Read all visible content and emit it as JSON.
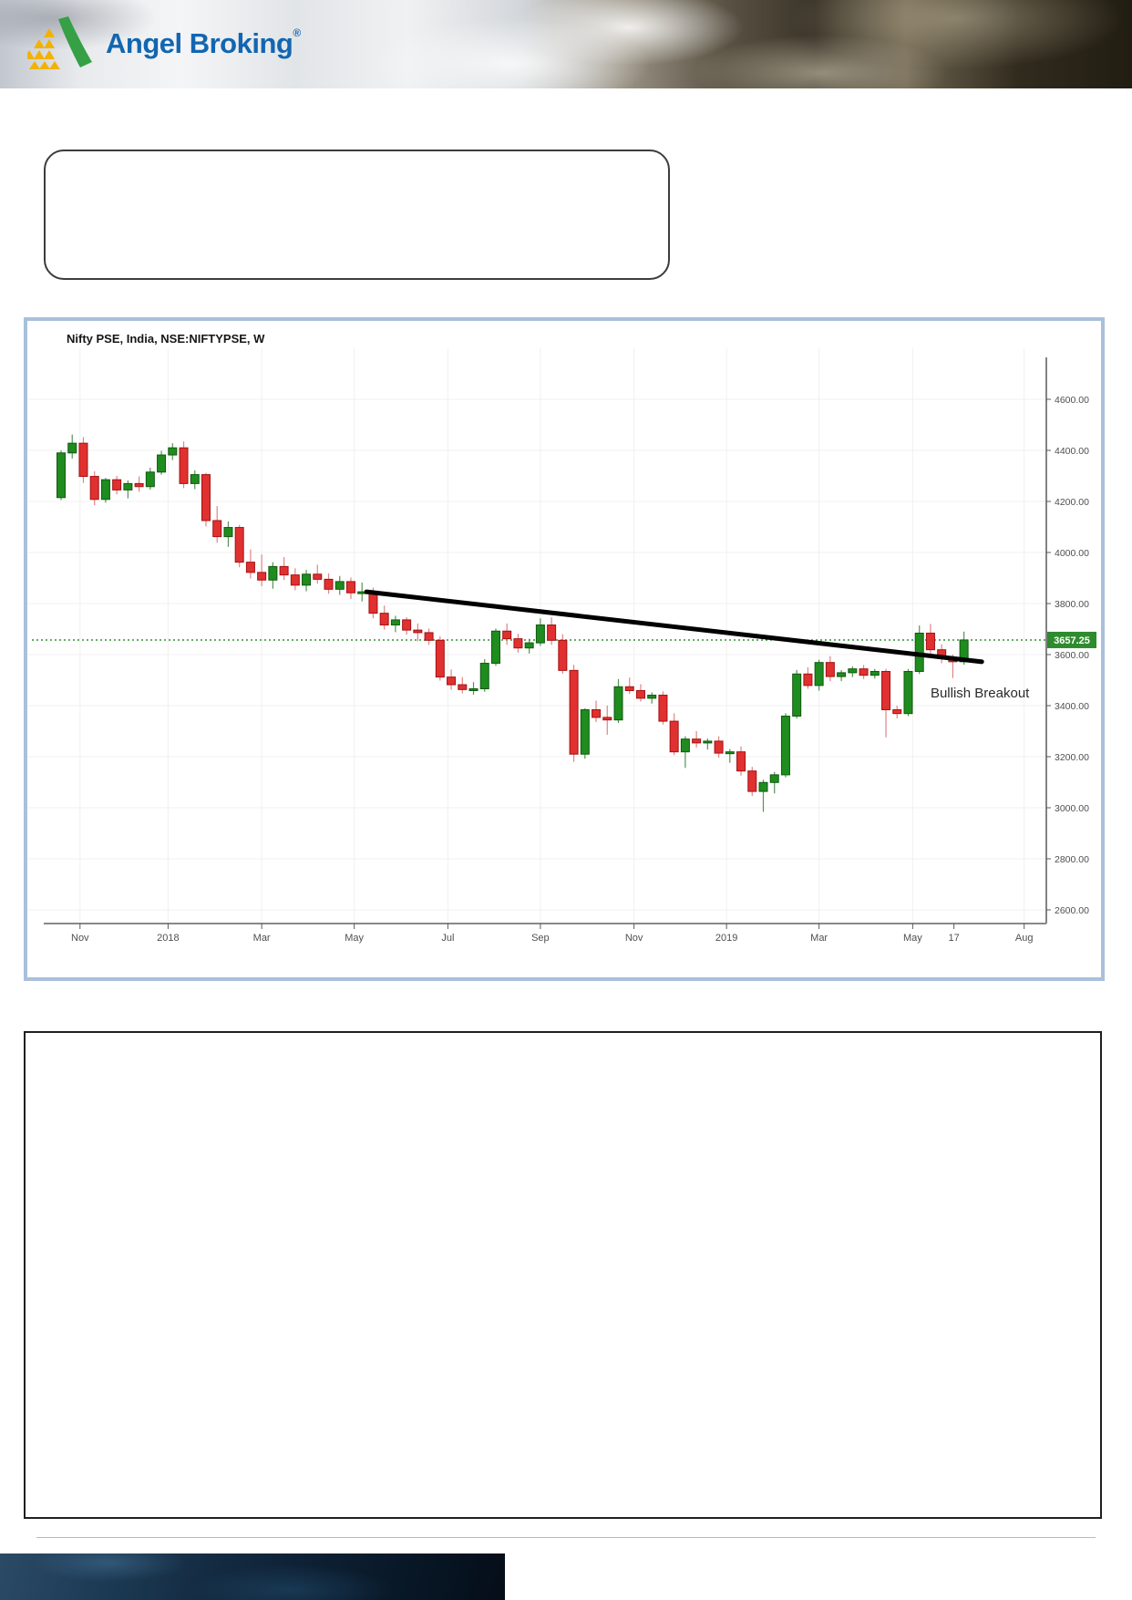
{
  "header": {
    "brand": "Angel Broking",
    "registered": "®"
  },
  "callout_box": {
    "text": ""
  },
  "notes_box": {
    "text": ""
  },
  "chart": {
    "title": "Nifty PSE, India, NSE:NIFTYPSE, W",
    "price_badge": "3657.25",
    "annotation_label": "Bullish Breakout"
  },
  "colors": {
    "panel_border": "#a9c0dc",
    "candle_up": "#1e8c1e",
    "candle_up_border": "#11590f",
    "candle_down": "#e03030",
    "candle_down_border": "#a31212",
    "wick_up": "#569356",
    "wick_down": "#e08484",
    "grid": "#f0f0f0",
    "axis": "#5a5a5a",
    "tick_label": "#4f4f4f",
    "trendline": "#000000",
    "hline": "#0f7a0f",
    "badge_bg": "#2e8b2e",
    "badge_text": "#ffffff",
    "annotation_text": "#2a2a2a"
  },
  "chart_data": {
    "type": "candlestick",
    "title": "Nifty PSE, India, NSE:NIFTYPSE, W",
    "timeframe": "weekly",
    "last_price": 3657.25,
    "grid": true,
    "legend_position": "none",
    "ylim": [
      2550,
      4900
    ],
    "y_ticks": [
      {
        "value": 4600,
        "label": "4600.00"
      },
      {
        "value": 4400,
        "label": "4400.00"
      },
      {
        "value": 4200,
        "label": "4200.00"
      },
      {
        "value": 4000,
        "label": "4000.00"
      },
      {
        "value": 3800,
        "label": "3800.00"
      },
      {
        "value": 3600,
        "label": "3600.00"
      },
      {
        "value": 3400,
        "label": "3400.00"
      },
      {
        "value": 3200,
        "label": "3200.00"
      },
      {
        "value": 3000,
        "label": "3000.00"
      },
      {
        "value": 2800,
        "label": "2800.00"
      },
      {
        "value": 2600,
        "label": "2600.00"
      }
    ],
    "x_ticks": [
      {
        "label": "Nov",
        "bar": 1.7,
        "grid": true
      },
      {
        "label": "2018",
        "bar": 9.6,
        "grid": true
      },
      {
        "label": "Mar",
        "bar": 18.0,
        "grid": true
      },
      {
        "label": "May",
        "bar": 26.3,
        "grid": true
      },
      {
        "label": "Jul",
        "bar": 34.7,
        "grid": true
      },
      {
        "label": "Sep",
        "bar": 43.0,
        "grid": true
      },
      {
        "label": "Nov",
        "bar": 51.4,
        "grid": true
      },
      {
        "label": "2019",
        "bar": 59.7,
        "grid": true
      },
      {
        "label": "Mar",
        "bar": 68.0,
        "grid": true
      },
      {
        "label": "May",
        "bar": 76.4,
        "grid": true
      },
      {
        "label": "17",
        "bar": 80.1,
        "grid": false
      },
      {
        "label": "Aug",
        "bar": 86.4,
        "grid": true
      }
    ],
    "candles_ohlc": [
      [
        4215,
        4400,
        4205,
        4390
      ],
      [
        4390,
        4462,
        4368,
        4428
      ],
      [
        4428,
        4452,
        4272,
        4298
      ],
      [
        4298,
        4318,
        4185,
        4208
      ],
      [
        4208,
        4292,
        4195,
        4285
      ],
      [
        4285,
        4300,
        4228,
        4245
      ],
      [
        4245,
        4282,
        4212,
        4270
      ],
      [
        4270,
        4298,
        4238,
        4258
      ],
      [
        4258,
        4332,
        4246,
        4315
      ],
      [
        4315,
        4398,
        4305,
        4382
      ],
      [
        4382,
        4428,
        4362,
        4410
      ],
      [
        4410,
        4435,
        4252,
        4270
      ],
      [
        4270,
        4322,
        4248,
        4305
      ],
      [
        4305,
        4312,
        4102,
        4125
      ],
      [
        4125,
        4182,
        4038,
        4062
      ],
      [
        4062,
        4122,
        4022,
        4098
      ],
      [
        4098,
        4108,
        3942,
        3962
      ],
      [
        3962,
        4012,
        3898,
        3922
      ],
      [
        3922,
        3992,
        3868,
        3892
      ],
      [
        3892,
        3962,
        3858,
        3945
      ],
      [
        3945,
        3982,
        3892,
        3912
      ],
      [
        3912,
        3938,
        3852,
        3872
      ],
      [
        3872,
        3932,
        3848,
        3915
      ],
      [
        3915,
        3952,
        3878,
        3895
      ],
      [
        3895,
        3918,
        3838,
        3856
      ],
      [
        3856,
        3908,
        3834,
        3886
      ],
      [
        3886,
        3902,
        3818,
        3842
      ],
      [
        3842,
        3882,
        3808,
        3846
      ],
      [
        3846,
        3862,
        3742,
        3762
      ],
      [
        3762,
        3792,
        3698,
        3716
      ],
      [
        3716,
        3752,
        3688,
        3736
      ],
      [
        3736,
        3746,
        3678,
        3696
      ],
      [
        3696,
        3722,
        3652,
        3686
      ],
      [
        3686,
        3702,
        3638,
        3656
      ],
      [
        3656,
        3672,
        3498,
        3512
      ],
      [
        3512,
        3542,
        3462,
        3482
      ],
      [
        3482,
        3512,
        3448,
        3463
      ],
      [
        3463,
        3492,
        3443,
        3466
      ],
      [
        3466,
        3582,
        3454,
        3566
      ],
      [
        3566,
        3702,
        3556,
        3692
      ],
      [
        3692,
        3722,
        3638,
        3662
      ],
      [
        3662,
        3682,
        3608,
        3626
      ],
      [
        3626,
        3662,
        3604,
        3646
      ],
      [
        3646,
        3742,
        3634,
        3716
      ],
      [
        3716,
        3746,
        3638,
        3656
      ],
      [
        3656,
        3680,
        3525,
        3538
      ],
      [
        3538,
        3560,
        3180,
        3210
      ],
      [
        3210,
        3390,
        3192,
        3384
      ],
      [
        3384,
        3420,
        3336,
        3354
      ],
      [
        3354,
        3400,
        3286,
        3344
      ],
      [
        3344,
        3504,
        3332,
        3474
      ],
      [
        3474,
        3510,
        3446,
        3459
      ],
      [
        3459,
        3484,
        3416,
        3429
      ],
      [
        3429,
        3452,
        3408,
        3441
      ],
      [
        3441,
        3456,
        3326,
        3339
      ],
      [
        3339,
        3370,
        3206,
        3219
      ],
      [
        3219,
        3280,
        3156,
        3269
      ],
      [
        3269,
        3300,
        3236,
        3254
      ],
      [
        3254,
        3272,
        3228,
        3261
      ],
      [
        3261,
        3280,
        3196,
        3214
      ],
      [
        3214,
        3230,
        3176,
        3219
      ],
      [
        3219,
        3240,
        3126,
        3144
      ],
      [
        3144,
        3160,
        3046,
        3064
      ],
      [
        3064,
        3110,
        2984,
        3099
      ],
      [
        3099,
        3140,
        3056,
        3129
      ],
      [
        3129,
        3370,
        3119,
        3359
      ],
      [
        3359,
        3540,
        3349,
        3524
      ],
      [
        3524,
        3550,
        3466,
        3479
      ],
      [
        3479,
        3580,
        3459,
        3569
      ],
      [
        3569,
        3594,
        3496,
        3514
      ],
      [
        3514,
        3539,
        3496,
        3529
      ],
      [
        3529,
        3554,
        3512,
        3544
      ],
      [
        3544,
        3559,
        3504,
        3519
      ],
      [
        3519,
        3544,
        3506,
        3534
      ],
      [
        3534,
        3544,
        3276,
        3384
      ],
      [
        3384,
        3400,
        3350,
        3369
      ],
      [
        3369,
        3544,
        3359,
        3534
      ],
      [
        3534,
        3714,
        3524,
        3684
      ],
      [
        3684,
        3720,
        3596,
        3619
      ],
      [
        3619,
        3640,
        3566,
        3584
      ],
      [
        3584,
        3600,
        3508,
        3572
      ],
      [
        3572,
        3690,
        3560,
        3657.25
      ]
    ],
    "trendline": {
      "bar_start": 27.4,
      "price_start": 3846,
      "bar_end": 82.6,
      "price_end": 3572,
      "width": 5
    },
    "hline": {
      "price": 3657.25,
      "style": "dotted"
    },
    "annotation": {
      "text": "Bullish Breakout",
      "bar": 78,
      "price": 3432
    },
    "price_scale_badge": {
      "price": 3657.25,
      "label": "3657.25"
    }
  }
}
